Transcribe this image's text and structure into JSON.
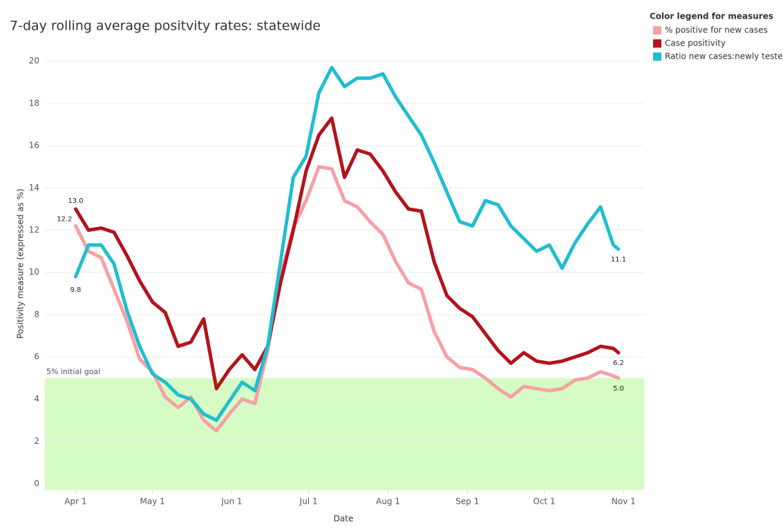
{
  "chart_data": {
    "type": "line",
    "title": "7-day rolling average positvity rates: statewide",
    "x_label": "Date",
    "y_label": "Positivity measure (expressed as %)",
    "legend_title": "Color legend for measures",
    "legend_position": "top-right",
    "goal": 5,
    "goal_label": "5% initial goal",
    "goal_color": "#d5fcc4",
    "grid": true,
    "xlim": [
      "Mar 20",
      "Nov 9"
    ],
    "xticks": [
      "Apr 1",
      "May 1",
      "Jun 1",
      "Jul 1",
      "Aug 1",
      "Sep 1",
      "Oct 1",
      "Nov 1"
    ],
    "ylim": [
      -0.3,
      21.1
    ],
    "yticks": [
      0,
      2,
      4,
      6,
      8,
      10,
      12,
      14,
      16,
      18,
      20
    ],
    "x": [
      "Apr 1",
      "Apr 6",
      "Apr 11",
      "Apr 16",
      "Apr 21",
      "Apr 26",
      "May 1",
      "May 6",
      "May 11",
      "May 16",
      "May 21",
      "May 26",
      "May 31",
      "Jun 5",
      "Jun 10",
      "Jun 15",
      "Jun 20",
      "Jun 25",
      "Jun 30",
      "Jul 5",
      "Jul 10",
      "Jul 15",
      "Jul 20",
      "Jul 25",
      "Jul 30",
      "Aug 4",
      "Aug 9",
      "Aug 14",
      "Aug 19",
      "Aug 24",
      "Aug 29",
      "Sep 3",
      "Sep 8",
      "Sep 13",
      "Sep 18",
      "Sep 23",
      "Sep 28",
      "Oct 3",
      "Oct 8",
      "Oct 13",
      "Oct 18",
      "Oct 23",
      "Oct 28",
      "Oct 30"
    ],
    "series": [
      {
        "name": "% positive for new cases",
        "color": "#f6a0a6",
        "values": [
          12.2,
          11.0,
          10.7,
          9.2,
          7.7,
          5.9,
          5.3,
          4.1,
          3.6,
          4.1,
          3.0,
          2.5,
          3.3,
          4.0,
          3.8,
          6.3,
          9.8,
          12.1,
          13.4,
          15.0,
          14.9,
          13.4,
          13.1,
          12.4,
          11.8,
          10.5,
          9.5,
          9.2,
          7.2,
          6.0,
          5.5,
          5.4,
          5.0,
          4.5,
          4.1,
          4.6,
          4.5,
          4.4,
          4.5,
          4.9,
          5.0,
          5.3,
          5.1,
          5.0
        ],
        "value_labels": [
          "12.2",
          null,
          null,
          null,
          null,
          null,
          null,
          null,
          null,
          null,
          null,
          null,
          null,
          null,
          null,
          null,
          null,
          null,
          null,
          null,
          null,
          null,
          null,
          null,
          null,
          null,
          null,
          null,
          null,
          null,
          null,
          null,
          null,
          null,
          null,
          null,
          null,
          null,
          null,
          null,
          null,
          null,
          null,
          "5.0"
        ]
      },
      {
        "name": "Case positivity",
        "color": "#b5121b",
        "values": [
          13.0,
          12.0,
          12.1,
          11.9,
          10.8,
          9.6,
          8.6,
          8.1,
          6.5,
          6.7,
          7.8,
          4.5,
          5.4,
          6.1,
          5.4,
          6.5,
          9.5,
          12.0,
          14.8,
          16.5,
          17.3,
          14.5,
          15.8,
          15.6,
          14.8,
          13.8,
          13.0,
          12.9,
          10.5,
          8.9,
          8.3,
          7.9,
          7.1,
          6.3,
          5.7,
          6.2,
          5.8,
          5.7,
          5.8,
          6.0,
          6.2,
          6.5,
          6.4,
          6.2
        ],
        "value_labels": [
          "13.0",
          null,
          null,
          null,
          null,
          null,
          null,
          null,
          null,
          null,
          null,
          null,
          null,
          null,
          null,
          null,
          null,
          null,
          null,
          null,
          null,
          null,
          null,
          null,
          null,
          null,
          null,
          null,
          null,
          null,
          null,
          null,
          null,
          null,
          null,
          null,
          null,
          null,
          null,
          null,
          null,
          null,
          null,
          "6.2"
        ]
      },
      {
        "name": "Ratio new cases:newly tested",
        "color": "#1fbecf",
        "values": [
          9.8,
          11.3,
          11.3,
          10.4,
          8.2,
          6.5,
          5.2,
          4.8,
          4.2,
          4.0,
          3.3,
          3.0,
          3.9,
          4.8,
          4.4,
          6.5,
          10.5,
          14.5,
          15.5,
          18.5,
          19.7,
          18.8,
          19.2,
          19.2,
          19.4,
          18.3,
          17.4,
          16.5,
          15.2,
          13.8,
          12.4,
          12.2,
          13.4,
          13.2,
          12.2,
          11.6,
          11.0,
          11.3,
          10.2,
          11.4,
          12.3,
          13.1,
          11.3,
          11.1
        ],
        "value_labels": [
          "9.8",
          null,
          null,
          null,
          null,
          null,
          null,
          null,
          null,
          null,
          null,
          null,
          null,
          null,
          null,
          null,
          null,
          null,
          null,
          null,
          null,
          null,
          null,
          null,
          null,
          null,
          null,
          null,
          null,
          null,
          null,
          null,
          null,
          null,
          null,
          null,
          null,
          null,
          null,
          null,
          null,
          null,
          null,
          "11.1"
        ]
      }
    ]
  }
}
